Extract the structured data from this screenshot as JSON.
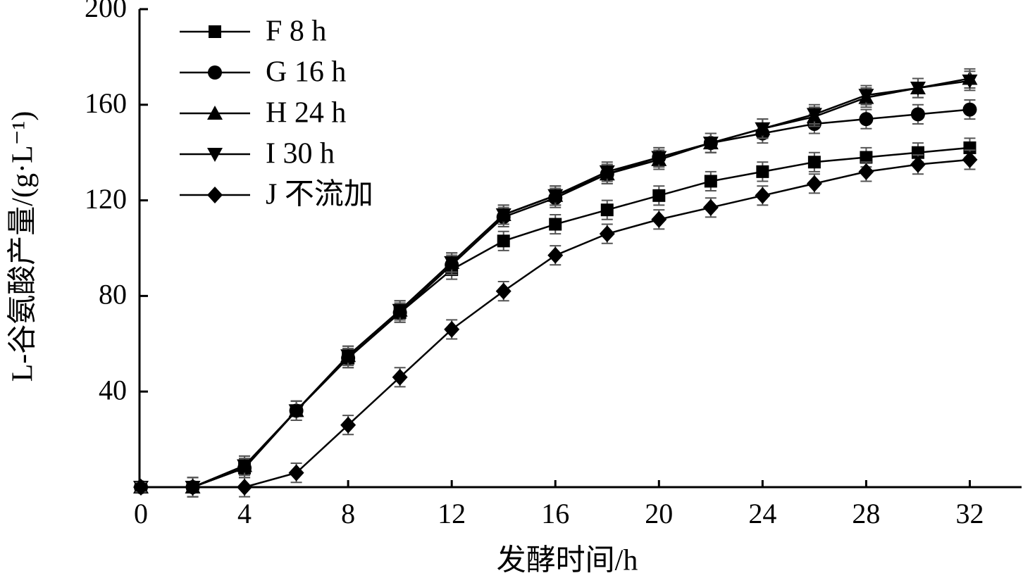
{
  "chart_data": {
    "type": "line",
    "xlabel": "发酵时间/h",
    "ylabel": "L-谷氨酸产量/(g·L⁻¹)",
    "x": [
      0,
      2,
      4,
      6,
      8,
      10,
      12,
      14,
      16,
      18,
      20,
      22,
      24,
      26,
      28,
      30,
      32
    ],
    "xlim": [
      0,
      34
    ],
    "xticks": [
      0,
      4,
      8,
      12,
      16,
      20,
      24,
      28,
      32
    ],
    "ylim": [
      0,
      200
    ],
    "yticks": [
      40,
      80,
      120,
      160,
      200
    ],
    "legend": "upper left",
    "series": [
      {
        "name": "F 8 h",
        "color": "#000000",
        "marker": "square",
        "values": [
          0,
          0,
          8,
          32,
          54,
          73,
          91,
          103,
          110,
          116,
          122,
          128,
          132,
          136,
          138,
          140,
          142
        ],
        "errors": [
          2,
          4,
          4,
          4,
          4,
          4,
          4,
          4,
          4,
          4,
          4,
          4,
          4,
          4,
          4,
          4,
          4
        ]
      },
      {
        "name": "G 16 h",
        "color": "#000000",
        "marker": "circle",
        "values": [
          0,
          0,
          8,
          32,
          54,
          73,
          93,
          113,
          121,
          131,
          138,
          144,
          148,
          152,
          154,
          156,
          158
        ],
        "errors": [
          2,
          4,
          4,
          4,
          4,
          4,
          4,
          4,
          4,
          4,
          4,
          4,
          4,
          4,
          4,
          4,
          4
        ]
      },
      {
        "name": "H 24 h",
        "color": "#000000",
        "marker": "triangle",
        "values": [
          0,
          0,
          9,
          32,
          55,
          74,
          94,
          114,
          122,
          131,
          137,
          144,
          150,
          155,
          163,
          167,
          171
        ],
        "errors": [
          2,
          4,
          4,
          4,
          4,
          4,
          4,
          4,
          4,
          4,
          4,
          4,
          4,
          4,
          4,
          4,
          4
        ]
      },
      {
        "name": "I 30 h",
        "color": "#000000",
        "marker": "triangle-down",
        "values": [
          0,
          0,
          9,
          32,
          55,
          74,
          94,
          114,
          122,
          132,
          138,
          144,
          150,
          156,
          164,
          167,
          170
        ],
        "errors": [
          2,
          4,
          4,
          4,
          4,
          4,
          4,
          4,
          4,
          4,
          4,
          4,
          4,
          4,
          4,
          4,
          4
        ]
      },
      {
        "name": "J 不流加",
        "color": "#000000",
        "marker": "diamond",
        "values": [
          0,
          0,
          0,
          6,
          26,
          46,
          66,
          82,
          97,
          106,
          112,
          117,
          122,
          127,
          132,
          135,
          137
        ],
        "errors": [
          2,
          4,
          4,
          4,
          4,
          4,
          4,
          4,
          4,
          4,
          4,
          4,
          4,
          4,
          4,
          4,
          4
        ]
      }
    ]
  }
}
